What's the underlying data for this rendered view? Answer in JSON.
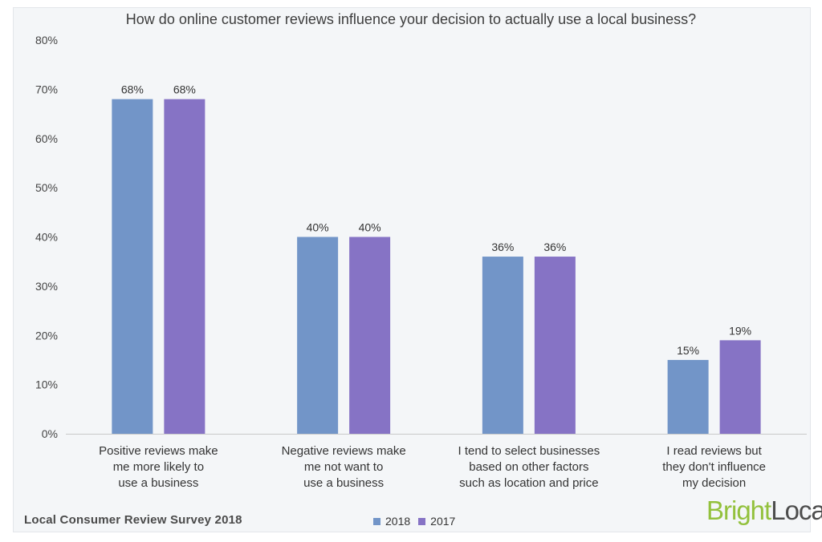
{
  "chart_data": {
    "type": "bar",
    "title": "How do online customer reviews influence your decision to actually use a local business?",
    "categories": [
      [
        "Positive reviews make",
        "me more likely to",
        "use a business"
      ],
      [
        "Negative reviews make",
        "me not want to",
        "use a business"
      ],
      [
        "I tend to select businesses",
        "based on other factors",
        "such as location and price"
      ],
      [
        "I read reviews but",
        "they don't influence",
        "my decision"
      ]
    ],
    "series": [
      {
        "name": "2018",
        "values": [
          68,
          40,
          36,
          15
        ],
        "labels": [
          "68%",
          "40%",
          "36%",
          "15%"
        ],
        "color": "#7295c8"
      },
      {
        "name": "2017",
        "values": [
          68,
          40,
          36,
          19
        ],
        "labels": [
          "68%",
          "40%",
          "36%",
          "19%"
        ],
        "color": "#8673c5"
      }
    ],
    "ylim": [
      0,
      80
    ],
    "yticks": [
      "0%",
      "10%",
      "20%",
      "30%",
      "40%",
      "50%",
      "60%",
      "70%",
      "80%"
    ],
    "grid": false,
    "legend_position": "bottom-center"
  },
  "footer": {
    "source": "Local Consumer Review Survey 2018",
    "brand_part1": "Bright",
    "brand_part2": "Local"
  },
  "colors": {
    "series_2018": "#7295c8",
    "series_2017": "#8673c5",
    "brand_green": "#93c13d"
  }
}
